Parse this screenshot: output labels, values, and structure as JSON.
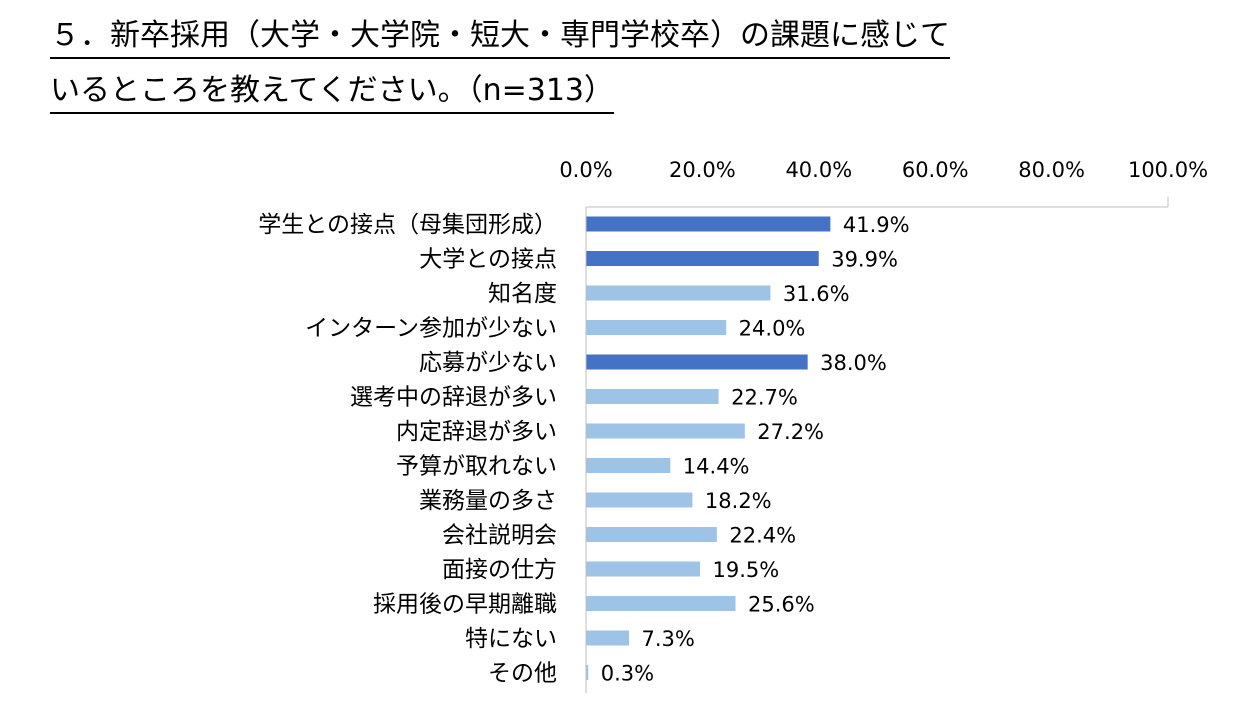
{
  "title_lines": [
    "５．新卒採用（大学・大学院・短大・専門学校卒）の課題に感じて",
    "いるところを教えてください。（n=313）"
  ],
  "colors": {
    "highlight_bar": "#4472c4",
    "normal_bar": "#9dc3e6",
    "axis": "#bfbfbf"
  },
  "chart_data": {
    "type": "bar",
    "orientation": "horizontal",
    "title": "５．新卒採用（大学・大学院・短大・専門学校卒）の課題に感じているところを教えてください。（n=313）",
    "categories": [
      "学生との接点（母集団形成）",
      "大学との接点",
      "知名度",
      "インターン参加が少ない",
      "応募が少ない",
      "選考中の辞退が多い",
      "内定辞退が多い",
      "予算が取れない",
      "業務量の多さ",
      "会社説明会",
      "面接の仕方",
      "採用後の早期離職",
      "特にない",
      "その他"
    ],
    "values": [
      41.9,
      39.9,
      31.6,
      24.0,
      38.0,
      22.7,
      27.2,
      14.4,
      18.2,
      22.4,
      19.5,
      25.6,
      7.3,
      0.3
    ],
    "value_labels": [
      "41.9%",
      "39.9%",
      "31.6%",
      "24.0%",
      "38.0%",
      "22.7%",
      "27.2%",
      "14.4%",
      "18.2%",
      "22.4%",
      "19.5%",
      "25.6%",
      "7.3%",
      "0.3%"
    ],
    "highlighted": [
      true,
      true,
      false,
      false,
      true,
      false,
      false,
      false,
      false,
      false,
      false,
      false,
      false,
      false
    ],
    "xlim": [
      0,
      100
    ],
    "x_ticks": [
      0,
      20,
      40,
      60,
      80,
      100
    ],
    "x_tick_labels": [
      "0.0%",
      "20.0%",
      "40.0%",
      "60.0%",
      "80.0%",
      "100.0%"
    ],
    "x_axis_position": "top",
    "grid": false,
    "legend": "none"
  }
}
